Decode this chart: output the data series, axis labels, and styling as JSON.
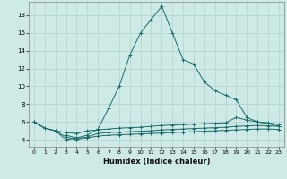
{
  "xlabel": "Humidex (Indice chaleur)",
  "background_color": "#ceeae6",
  "line_color": "#1a6b6b",
  "grid_color": "#b0d0cc",
  "xlim": [
    -0.5,
    23.5
  ],
  "ylim": [
    3.2,
    19.5
  ],
  "yticks": [
    4,
    6,
    8,
    10,
    12,
    14,
    16,
    18
  ],
  "xticks": [
    0,
    1,
    2,
    3,
    4,
    5,
    6,
    7,
    8,
    9,
    10,
    11,
    12,
    13,
    14,
    15,
    16,
    17,
    18,
    19,
    20,
    21,
    22,
    23
  ],
  "big_x": [
    0,
    1,
    2,
    3,
    4,
    5,
    6,
    7,
    8,
    9,
    10,
    11,
    12,
    13,
    14,
    15,
    16,
    17,
    18,
    19,
    20,
    21,
    22,
    23
  ],
  "big_y": [
    6.0,
    5.3,
    5.0,
    4.0,
    4.2,
    4.5,
    5.2,
    7.5,
    10.0,
    13.5,
    16.0,
    17.5,
    19.0,
    16.0,
    13.0,
    12.5,
    10.5,
    9.5,
    9.0,
    8.5,
    6.5,
    6.0,
    5.8,
    5.5
  ],
  "fl1_x": [
    0,
    1,
    2,
    3,
    4,
    5,
    6,
    7,
    8,
    9,
    10,
    11,
    12,
    13,
    14,
    15,
    16,
    17,
    18,
    19,
    20,
    21,
    22,
    23
  ],
  "fl1_y": [
    6.0,
    5.3,
    5.0,
    4.8,
    4.7,
    5.0,
    5.1,
    5.2,
    5.3,
    5.35,
    5.4,
    5.5,
    5.6,
    5.65,
    5.7,
    5.75,
    5.8,
    5.85,
    5.9,
    6.5,
    6.2,
    6.0,
    5.9,
    5.7
  ],
  "fl2_x": [
    0,
    1,
    2,
    3,
    4,
    5,
    6,
    7,
    8,
    9,
    10,
    11,
    12,
    13,
    14,
    15,
    16,
    17,
    18,
    19,
    20,
    21,
    22,
    23
  ],
  "fl2_y": [
    6.0,
    5.3,
    5.0,
    4.3,
    4.0,
    4.3,
    4.7,
    4.8,
    4.85,
    4.9,
    4.95,
    5.0,
    5.1,
    5.15,
    5.2,
    5.25,
    5.3,
    5.35,
    5.4,
    5.5,
    5.55,
    5.6,
    5.55,
    5.5
  ],
  "fl3_x": [
    3,
    4,
    5,
    6,
    7,
    8,
    9,
    10,
    11,
    12,
    13,
    14,
    15,
    16,
    17,
    18,
    19,
    20,
    21,
    22,
    23
  ],
  "fl3_y": [
    4.5,
    4.2,
    4.2,
    4.4,
    4.5,
    4.55,
    4.6,
    4.65,
    4.7,
    4.75,
    4.8,
    4.85,
    4.9,
    4.95,
    5.0,
    5.05,
    5.1,
    5.15,
    5.2,
    5.2,
    5.15
  ]
}
